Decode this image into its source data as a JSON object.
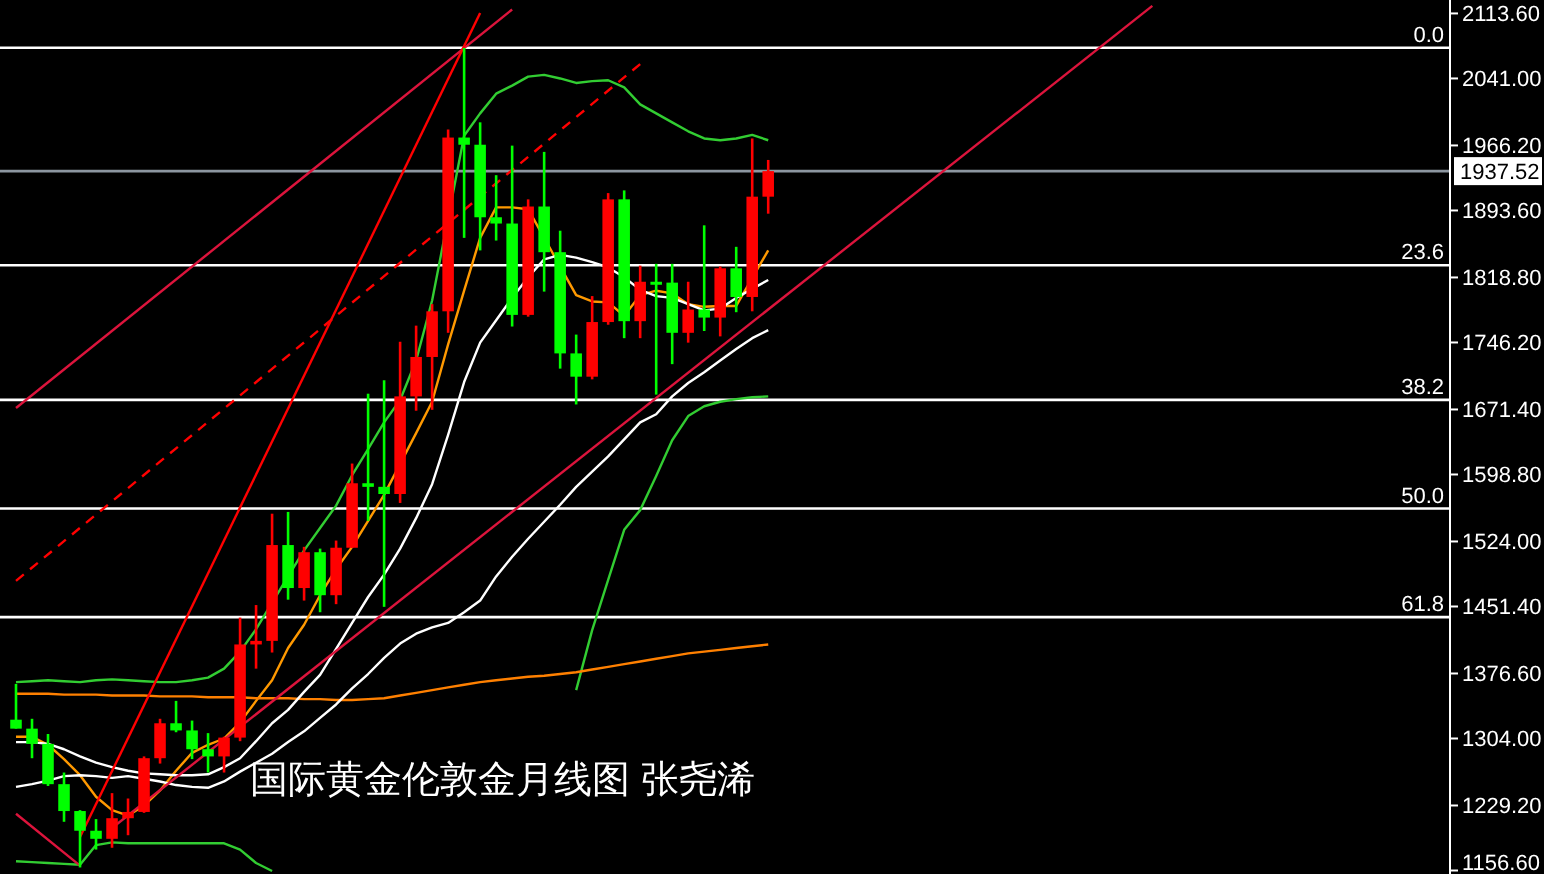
{
  "chart_data": {
    "type": "candlestick",
    "categories": [
      null,
      null,
      null,
      null,
      null,
      null,
      null,
      null,
      null,
      null,
      null,
      null,
      null,
      null,
      null,
      null,
      null,
      null,
      null,
      null,
      null,
      null,
      null,
      null,
      null,
      null,
      null,
      null,
      null,
      null,
      null,
      null,
      null,
      null,
      null,
      null,
      null,
      null,
      null,
      null,
      null,
      null,
      null,
      null,
      null,
      null,
      null,
      null,
      null,
      null,
      null,
      null,
      null,
      null,
      null,
      null,
      null,
      null,
      null,
      null,
      null,
      null,
      null,
      null,
      null,
      null,
      null,
      null,
      null,
      null,
      null,
      null,
      null,
      null,
      null,
      null,
      null,
      null,
      null,
      null,
      null,
      null,
      null,
      null,
      null,
      null,
      null,
      null,
      null,
      null
    ],
    "ohlc": [
      [
        1325,
        1365,
        1315,
        1315
      ],
      [
        1315,
        1326,
        1282,
        1298
      ],
      [
        1298,
        1309,
        1251,
        1253
      ],
      [
        1253,
        1266,
        1211,
        1223
      ],
      [
        1223,
        1224,
        1160,
        1201
      ],
      [
        1201,
        1214,
        1180,
        1192
      ],
      [
        1192,
        1243,
        1182,
        1215
      ],
      [
        1215,
        1237,
        1196,
        1222
      ],
      [
        1222,
        1284,
        1221,
        1282
      ],
      [
        1282,
        1326,
        1276,
        1321
      ],
      [
        1321,
        1346,
        1311,
        1313
      ],
      [
        1313,
        1324,
        1281,
        1292
      ],
      [
        1292,
        1310,
        1266,
        1284
      ],
      [
        1284,
        1306,
        1266,
        1305
      ],
      [
        1305,
        1439,
        1301,
        1409
      ],
      [
        1409,
        1453,
        1382,
        1413
      ],
      [
        1413,
        1555,
        1400,
        1520
      ],
      [
        1520,
        1557,
        1459,
        1472
      ],
      [
        1472,
        1518,
        1458,
        1512
      ],
      [
        1512,
        1516,
        1445,
        1464
      ],
      [
        1464,
        1525,
        1454,
        1517
      ],
      [
        1517,
        1611,
        1517,
        1589
      ],
      [
        1589,
        1689,
        1547,
        1585
      ],
      [
        1585,
        1704,
        1451,
        1577
      ],
      [
        1577,
        1747,
        1567,
        1686
      ],
      [
        1686,
        1765,
        1670,
        1730
      ],
      [
        1730,
        1789,
        1671,
        1781
      ],
      [
        1781,
        1984,
        1757,
        1975
      ],
      [
        1975,
        2075,
        1863,
        1967
      ],
      [
        1967,
        1992,
        1849,
        1886
      ],
      [
        1886,
        1933,
        1860,
        1879
      ],
      [
        1879,
        1966,
        1764,
        1777
      ],
      [
        1777,
        1906,
        1775,
        1898
      ],
      [
        1898,
        1959,
        1803,
        1847
      ],
      [
        1847,
        1871,
        1717,
        1734
      ],
      [
        1734,
        1755,
        1677,
        1708
      ],
      [
        1708,
        1798,
        1705,
        1769
      ],
      [
        1769,
        1913,
        1766,
        1906
      ],
      [
        1906,
        1916,
        1751,
        1770
      ],
      [
        1770,
        1832,
        1751,
        1814
      ],
      [
        1814,
        1834,
        1688,
        1813
      ],
      [
        1813,
        1834,
        1722,
        1757
      ],
      [
        1757,
        1814,
        1746,
        1783
      ],
      [
        1783,
        1877,
        1759,
        1774
      ],
      [
        1774,
        1831,
        1753,
        1829
      ],
      [
        1829,
        1853,
        1780,
        1797
      ],
      [
        1797,
        1974,
        1781,
        1909
      ],
      [
        1909,
        1950,
        1890,
        1937.52
      ],
      null,
      null,
      null,
      null,
      null,
      null,
      null,
      null,
      null,
      null,
      null,
      null,
      null,
      null,
      null,
      null,
      null,
      null,
      null,
      null,
      null,
      null,
      null,
      null,
      null,
      null,
      null,
      null,
      null,
      null,
      null,
      null,
      null,
      null,
      null,
      null,
      null,
      null,
      null,
      null,
      null,
      null
    ],
    "colors": [
      "#00ff00",
      "#00ff00",
      "#00ff00",
      "#00ff00",
      "#00ff00",
      "#00ff00",
      "#ff0000",
      "#ff0000",
      "#ff0000",
      "#ff0000",
      "#00ff00",
      "#00ff00",
      "#00ff00",
      "#ff0000",
      "#ff0000",
      "#ff0000",
      "#ff0000",
      "#00ff00",
      "#ff0000",
      "#00ff00",
      "#ff0000",
      "#ff0000",
      "#00ff00",
      "#00ff00",
      "#ff0000",
      "#ff0000",
      "#ff0000",
      "#ff0000",
      "#00ff00",
      "#00ff00",
      "#00ff00",
      "#00ff00",
      "#ff0000",
      "#00ff00",
      "#00ff00",
      "#00ff00",
      "#ff0000",
      "#ff0000",
      "#00ff00",
      "#ff0000",
      "#00ff00",
      "#00ff00",
      "#ff0000",
      "#00ff00",
      "#ff0000",
      "#00ff00",
      "#ff0000",
      "#ff0000",
      null,
      null,
      null,
      null,
      null,
      null,
      null,
      null,
      null,
      null,
      null,
      null,
      null,
      null,
      null,
      null,
      null,
      null,
      null,
      null,
      null,
      null,
      null,
      null,
      null,
      null,
      null,
      null,
      null,
      null,
      null,
      null,
      null,
      null,
      null,
      null,
      null,
      null,
      null,
      null,
      null,
      null
    ],
    "series": [
      {
        "type": "line",
        "color": "#32cd32",
        "values": [
          1367,
          1368,
          1369,
          1368,
          1367,
          1369,
          1370,
          1369,
          1368,
          1367,
          1367,
          1369,
          1372,
          1382,
          1401,
          1426,
          null,
          1485,
          1514,
          1539,
          1564,
          1598,
          1627,
          1657,
          1682,
          1726,
          1793,
          null,
          1977,
          2002,
          2024,
          2033,
          2043,
          2045,
          2041,
          2036,
          2038,
          2039,
          2031,
          2012,
          2002,
          1992,
          1982,
          1974,
          1972,
          1974,
          1978,
          1972,
          null,
          null,
          null,
          null,
          null,
          null,
          null,
          null,
          null,
          null,
          null,
          null,
          null,
          null,
          null,
          null,
          null,
          null,
          null,
          null,
          null,
          null,
          null,
          null,
          null,
          null,
          null,
          null,
          null,
          null,
          null,
          null,
          null,
          null,
          null,
          null,
          null,
          null,
          null,
          null,
          null,
          null
        ]
      },
      {
        "type": "line",
        "color": "#32cd32",
        "values": [
          1167,
          1166,
          1165,
          1164,
          1163,
          1185,
          1188,
          1187,
          1187,
          1187,
          1187,
          1187,
          1187,
          1187,
          1180,
          1165,
          1156,
          null,
          null,
          null,
          null,
          null,
          null,
          null,
          null,
          null,
          null,
          null,
          null,
          null,
          null,
          null,
          null,
          null,
          null,
          null,
          null,
          null,
          null,
          null,
          null,
          null,
          null,
          null,
          null,
          null,
          null,
          null,
          null,
          null,
          null,
          null,
          null,
          null,
          null,
          null,
          null,
          null,
          null,
          null,
          null,
          null,
          null,
          null,
          null,
          null,
          null,
          null,
          null,
          null,
          null,
          null,
          null,
          null,
          null,
          null,
          null,
          null,
          null,
          null,
          null,
          null,
          null,
          null,
          null,
          null,
          null,
          null,
          null,
          null
        ]
      },
      {
        "type": "line",
        "color": "#32cd32",
        "values": [
          null,
          null,
          null,
          null,
          null,
          null,
          null,
          null,
          null,
          null,
          null,
          null,
          null,
          null,
          null,
          null,
          null,
          null,
          null,
          null,
          null,
          null,
          null,
          null,
          null,
          null,
          null,
          null,
          null,
          null,
          null,
          null,
          null,
          null,
          null,
          1358,
          1425,
          1481,
          1537,
          1559,
          1597,
          1637,
          1664,
          1675,
          1680,
          1683,
          1685,
          1686,
          null,
          null,
          null,
          null,
          null,
          null,
          null,
          null,
          null,
          null,
          null,
          null,
          null,
          null,
          null,
          null,
          null,
          null,
          null,
          null,
          null,
          null,
          null,
          null,
          null,
          null,
          null,
          null,
          null,
          null,
          null,
          null,
          null,
          null,
          null,
          null,
          null,
          null,
          null,
          null,
          null,
          null
        ]
      },
      {
        "type": "line",
        "color": "#ff9900",
        "values": [
          1306,
          1306,
          1297,
          1281,
          1263,
          1239,
          1224,
          1218,
          1229,
          1246,
          1268,
          1288,
          1297,
          1304,
          1322,
          1346,
          1369,
          1405,
          1431,
          1464,
          1493,
          1518,
          1547,
          1576,
          null,
          1645,
          1680,
          1744,
          1804,
          1863,
          1897,
          1897,
          1895,
          null,
          null,
          1799,
          1792,
          1791,
          1776,
          1799,
          1804,
          1801,
          1789,
          1786,
          1787,
          1787,
          null,
          1849,
          null,
          null,
          null,
          null,
          null,
          null,
          null,
          null,
          null,
          null,
          null,
          null,
          null,
          null,
          null,
          null,
          null,
          null,
          null,
          null,
          null,
          null,
          null,
          null,
          null,
          null,
          null,
          null,
          null,
          null,
          null,
          null,
          null,
          null,
          null,
          null,
          null,
          null,
          null,
          null,
          null,
          null
        ]
      },
      {
        "type": "line",
        "color": "#ff8000",
        "values": [
          1354,
          1354,
          1354,
          1353,
          1353,
          1353,
          1352,
          1352,
          1352,
          1351,
          1351,
          1351,
          1350,
          1350,
          1350,
          1349,
          1349,
          1349,
          1348,
          1348,
          1347,
          1347,
          1348,
          1349,
          1352,
          1355,
          1358,
          1361,
          1364,
          1367,
          1369,
          1371,
          1373,
          1374,
          1376,
          1378,
          1381,
          1384,
          1387,
          1390,
          1393,
          1396,
          1399,
          1401,
          1403,
          1405,
          1407,
          1409,
          null,
          null,
          null,
          null,
          null,
          null,
          null,
          null,
          null,
          null,
          null,
          null,
          null,
          null,
          null,
          null,
          null,
          null,
          null,
          null,
          null,
          null,
          null,
          null,
          null,
          null,
          null,
          null,
          null,
          null,
          null,
          null,
          null,
          null,
          null,
          null,
          null,
          null,
          null,
          null,
          null,
          null
        ]
      },
      {
        "type": "line",
        "color": "#ffffff",
        "values": [
          1300,
          1300,
          1298,
          1292,
          1284,
          1277,
          1272,
          1268,
          1265,
          1264,
          1263,
          1263,
          1264,
          1272,
          1282,
          1301,
          1321,
          1336,
          1356,
          1375,
          1404,
          1433,
          1462,
          1487,
          1516,
          1550,
          1588,
          1643,
          1702,
          1746,
          1771,
          1796,
          1819,
          1839,
          1844,
          1841,
          1836,
          1830,
          1819,
          1805,
          1798,
          1796,
          1789,
          1782,
          1784,
          1796,
          1806,
          1816,
          null,
          null,
          null,
          null,
          null,
          null,
          null,
          null,
          null,
          null,
          null,
          null,
          null,
          null,
          null,
          null,
          null,
          null,
          null,
          null,
          null,
          null,
          null,
          null,
          null,
          null,
          null,
          null,
          null,
          null,
          null,
          null,
          null,
          null,
          null,
          null,
          null,
          null,
          null,
          null,
          null,
          null
        ]
      },
      {
        "type": "line",
        "color": "#ffffff",
        "values": [
          1250,
          1253,
          1257,
          1262,
          1263,
          1262,
          1260,
          1262,
          1259,
          1256,
          1252,
          1250,
          1249,
          1256,
          1267,
          1277,
          1287,
          1300,
          1312,
          1327,
          1342,
          1360,
          1376,
          1394,
          1410,
          1421,
          1428,
          1433,
          1445,
          1458,
          1485,
          1507,
          1527,
          1546,
          1565,
          1585,
          1602,
          1619,
          1638,
          1657,
          1666,
          1686,
          1701,
          1713,
          1726,
          1739,
          1751,
          1760,
          null,
          null,
          null,
          null,
          null,
          null,
          null,
          null,
          null,
          null,
          null,
          null,
          null,
          null,
          null,
          null,
          null,
          null,
          null,
          null,
          null,
          null,
          null,
          null,
          null,
          null,
          null,
          null,
          null,
          null,
          null,
          null,
          null,
          null,
          null,
          null,
          null,
          null,
          null,
          null,
          null,
          null
        ]
      },
      {
        "type": "line",
        "color": "#dc143c",
        "values": [
          1673,
          null,
          null,
          null,
          null,
          null,
          null,
          null,
          null,
          null,
          null,
          null,
          null,
          null,
          null,
          null,
          null,
          null,
          null,
          null,
          null,
          null,
          null,
          null,
          null,
          null,
          null,
          null,
          null,
          null,
          null,
          2118,
          null,
          null,
          null,
          null,
          null,
          null,
          null,
          null,
          null,
          null,
          null,
          null,
          null,
          null,
          null,
          null,
          null,
          null,
          null,
          null,
          null,
          null,
          null,
          null,
          null,
          null,
          null,
          null,
          null,
          null,
          null,
          null,
          null,
          null,
          null,
          null,
          null,
          null,
          null,
          null,
          null,
          null,
          null,
          null,
          null,
          null,
          null,
          null,
          null,
          null,
          null,
          null,
          null,
          null,
          null,
          null,
          null,
          null
        ]
      },
      {
        "type": "line",
        "color": "#ff0000",
        "values": [
          null,
          null,
          null,
          null,
          1194,
          null,
          null,
          null,
          null,
          null,
          null,
          null,
          null,
          null,
          null,
          null,
          null,
          null,
          null,
          null,
          null,
          null,
          null,
          null,
          null,
          null,
          null,
          null,
          null,
          2114,
          null,
          null,
          null,
          null,
          null,
          null,
          null,
          null,
          null,
          null,
          null,
          null,
          null,
          null,
          null,
          null,
          null,
          null,
          null,
          null,
          null,
          null,
          null,
          null,
          null,
          null,
          null,
          null,
          null,
          null,
          null,
          null,
          null,
          null,
          null,
          null,
          null,
          null,
          null,
          null,
          null,
          null,
          null,
          null,
          null,
          null,
          null,
          null,
          null,
          null,
          null,
          null,
          null,
          null,
          null,
          null,
          null,
          null,
          null,
          null
        ]
      },
      {
        "type": "line",
        "color": "#ff0000",
        "line_style": "dashed",
        "values": [
          1480,
          null,
          null,
          null,
          null,
          null,
          null,
          null,
          null,
          null,
          null,
          null,
          null,
          null,
          null,
          null,
          null,
          null,
          null,
          null,
          null,
          null,
          null,
          null,
          null,
          null,
          null,
          null,
          null,
          null,
          null,
          null,
          null,
          null,
          null,
          null,
          null,
          null,
          null,
          2057,
          null,
          null,
          null,
          null,
          null,
          null,
          null,
          null,
          null,
          null,
          null,
          null,
          null,
          null,
          null,
          null,
          null,
          null,
          null,
          null,
          null,
          null,
          null,
          null,
          null,
          null,
          null,
          null,
          null,
          null,
          null,
          null,
          null,
          null,
          null,
          null,
          null,
          null,
          null,
          null,
          null,
          null,
          null,
          null,
          null,
          null,
          null,
          null,
          null,
          null
        ]
      },
      {
        "type": "line",
        "color": "#dc143c",
        "values": [
          null,
          null,
          null,
          null,
          null,
          null,
          1204,
          null,
          null,
          null,
          null,
          null,
          null,
          null,
          null,
          null,
          null,
          null,
          null,
          null,
          null,
          null,
          null,
          null,
          null,
          null,
          null,
          null,
          null,
          null,
          null,
          null,
          null,
          null,
          null,
          null,
          null,
          null,
          null,
          null,
          null,
          null,
          null,
          null,
          null,
          null,
          null,
          null,
          null,
          null,
          null,
          null,
          null,
          null,
          null,
          null,
          null,
          null,
          null,
          null,
          null,
          null,
          null,
          null,
          null,
          null,
          null,
          null,
          null,
          null,
          null,
          2122,
          null,
          null,
          null,
          null,
          null,
          null,
          null,
          null,
          null,
          null,
          null,
          null,
          null,
          null,
          null,
          null,
          null,
          null
        ]
      },
      {
        "type": "line",
        "color": "#dc143c",
        "values": [
          1220,
          null,
          null,
          null,
          1162,
          null,
          null,
          null,
          null,
          null,
          null,
          null,
          null,
          null,
          null,
          null,
          null,
          null,
          null,
          null,
          null,
          null,
          null,
          null,
          null,
          null,
          null,
          null,
          null,
          null,
          null,
          null,
          null,
          null,
          null,
          null,
          null,
          null,
          null,
          null,
          null,
          null,
          null,
          null,
          null,
          null,
          null,
          null,
          null,
          null,
          null,
          null,
          null,
          null,
          null,
          null,
          null,
          null,
          null,
          null,
          null,
          null,
          null,
          null,
          null,
          null,
          null,
          null,
          null,
          null,
          null,
          null,
          null,
          null,
          null,
          null,
          null,
          null,
          null,
          null,
          null,
          null,
          null,
          null,
          null,
          null,
          null,
          null,
          null,
          null
        ]
      }
    ],
    "ylim": [
      1152.7,
      2128.6
    ],
    "yticks": [
      {
        "value": 2113.6,
        "label": "2113.60"
      },
      {
        "value": 2041.0,
        "label": "2041.00"
      },
      {
        "value": 1966.2,
        "label": "1966.20"
      },
      {
        "value": 1893.6,
        "label": "1893.60"
      },
      {
        "value": 1818.8,
        "label": "1818.80"
      },
      {
        "value": 1746.2,
        "label": "1746.20"
      },
      {
        "value": 1671.4,
        "label": "1671.40"
      },
      {
        "value": 1598.8,
        "label": "1598.80"
      },
      {
        "value": 1524.0,
        "label": "1524.00"
      },
      {
        "value": 1451.4,
        "label": "1451.40"
      },
      {
        "value": 1376.6,
        "label": "1376.60"
      },
      {
        "value": 1304.0,
        "label": "1304.00"
      },
      {
        "value": 1229.2,
        "label": "1229.20"
      },
      {
        "value": 1156.6,
        "label": "1156.60"
      }
    ],
    "ref_lines": [
      {
        "axis": "y",
        "value": 2075.2,
        "color": "#ffffff"
      },
      {
        "axis": "y",
        "value": 1832.4,
        "color": "#ffffff"
      },
      {
        "axis": "y",
        "value": 1682.1,
        "color": "#ffffff"
      },
      {
        "axis": "y",
        "value": 1560.8,
        "color": "#ffffff"
      },
      {
        "axis": "y",
        "value": 1439.5,
        "color": "#ffffff"
      },
      {
        "axis": "y",
        "value": 1937.52,
        "label": "1937.52",
        "color": "#8c96a0"
      }
    ],
    "annotations": [
      {
        "text": "0.0",
        "y": 2075.2
      },
      {
        "text": "23.6",
        "y": 1832.4
      },
      {
        "text": "38.2",
        "y": 1682.1
      },
      {
        "text": "50.0",
        "y": 1560.8
      },
      {
        "text": "61.8",
        "y": 1439.5
      },
      "国际黄金伦敦金月线图  张尧浠"
    ],
    "grid": false
  }
}
